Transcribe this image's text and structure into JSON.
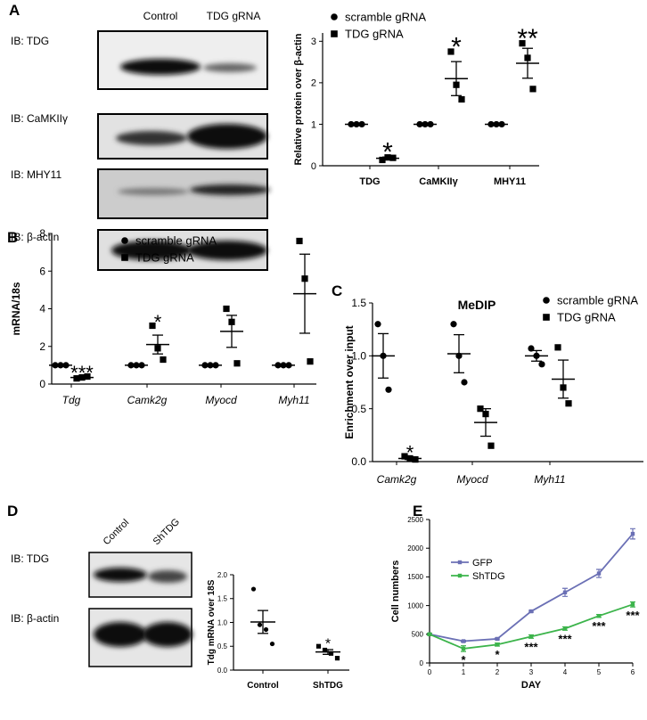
{
  "chart_data": [
    {
      "type": "dot",
      "panel": "A",
      "ylabel": "Relative protein over β-actin",
      "categories": [
        "TDG",
        "CaMKIIγ",
        "MHY11"
      ],
      "category_style": "bold",
      "legend": "upper-left",
      "series": [
        {
          "name": "scramble gRNA",
          "marker": "circle",
          "color": "#000000",
          "values": [
            1,
            1,
            1
          ],
          "errors": [
            0,
            0,
            0
          ],
          "points": [
            [
              1,
              1,
              1
            ],
            [
              1,
              1,
              1
            ],
            [
              1,
              1,
              1
            ]
          ]
        },
        {
          "name": "TDG gRNA",
          "marker": "square",
          "color": "#000000",
          "values": [
            0.18,
            2.1,
            2.47
          ],
          "errors": [
            0.03,
            0.41,
            0.36
          ],
          "points": [
            [
              0.14,
              0.2,
              0.19
            ],
            [
              2.75,
              1.95,
              1.6
            ],
            [
              2.95,
              2.6,
              1.85
            ]
          ]
        }
      ],
      "annotations": [
        "*",
        "*",
        "**"
      ],
      "ylim": [
        0,
        3.2
      ],
      "yticks": [
        0,
        1,
        2,
        3
      ]
    },
    {
      "type": "dot",
      "panel": "B",
      "ylabel": "mRNA/18s",
      "categories": [
        "Tdg",
        "Camk2g",
        "Myocd",
        "Myh11"
      ],
      "category_style": "italic",
      "legend": "upper-center",
      "series": [
        {
          "name": "scramble gRNA",
          "marker": "circle",
          "color": "#000000",
          "values": [
            1,
            1,
            1,
            1
          ],
          "errors": [
            0,
            0,
            0,
            0
          ],
          "points": [
            [
              1,
              1,
              1
            ],
            [
              1,
              1,
              1
            ],
            [
              1,
              1,
              1
            ],
            [
              1,
              1,
              1
            ]
          ]
        },
        {
          "name": "TDG gRNA",
          "marker": "square",
          "color": "#000000",
          "values": [
            0.35,
            2.1,
            2.8,
            4.8
          ],
          "errors": [
            0.04,
            0.5,
            0.85,
            2.1
          ],
          "points": [
            [
              0.3,
              0.35,
              0.4
            ],
            [
              3.1,
              1.9,
              1.3
            ],
            [
              4.0,
              3.3,
              1.1
            ],
            [
              7.6,
              5.6,
              1.2
            ]
          ]
        }
      ],
      "annotations": [
        "***",
        "*",
        null,
        null
      ],
      "ylim": [
        0,
        8
      ],
      "yticks": [
        0,
        2,
        4,
        6,
        8
      ]
    },
    {
      "type": "dot",
      "panel": "C",
      "title": "MeDIP",
      "ylabel": "Enrichment over input",
      "categories": [
        "Camk2g",
        "Myocd",
        "Myh11"
      ],
      "category_style": "italic",
      "legend": "upper-right",
      "series": [
        {
          "name": "scramble gRNA",
          "marker": "circle",
          "color": "#000000",
          "values": [
            1.0,
            1.02,
            1.0
          ],
          "errors": [
            0.21,
            0.18,
            0.05
          ],
          "points": [
            [
              1.3,
              1.0,
              0.68
            ],
            [
              1.3,
              1.0,
              0.75
            ],
            [
              1.07,
              1.0,
              0.92
            ]
          ]
        },
        {
          "name": "TDG gRNA",
          "marker": "square",
          "color": "#000000",
          "values": [
            0.03,
            0.37,
            0.78
          ],
          "errors": [
            0.01,
            0.13,
            0.18
          ],
          "points": [
            [
              0.05,
              0.03,
              0.02
            ],
            [
              0.5,
              0.45,
              0.15
            ],
            [
              1.08,
              0.7,
              0.55
            ]
          ]
        }
      ],
      "annotations": [
        "*",
        null,
        null
      ],
      "ylim": [
        0,
        1.5
      ],
      "yticks": [
        {
          "value": 0,
          "label": "0.0"
        },
        0.5,
        {
          "value": 1,
          "label": "1.0"
        },
        1.5
      ]
    },
    {
      "type": "dot",
      "panel": "D",
      "ylabel": "Tdg mRNA over 18S",
      "categories": [
        "Control",
        "ShTDG"
      ],
      "category_style": "bold",
      "markers": [
        "circle",
        "square"
      ],
      "color": "#000000",
      "values": [
        1.01,
        0.38
      ],
      "errors": [
        0.24,
        0.05
      ],
      "points": [
        [
          1.7,
          0.95,
          0.85,
          0.55
        ],
        [
          0.5,
          0.42,
          0.35,
          0.25
        ]
      ],
      "annotations": [
        null,
        "*"
      ],
      "ylim": [
        0,
        2
      ],
      "yticks": [
        {
          "value": 0,
          "label": "0.0"
        },
        0.5,
        {
          "value": 1,
          "label": "1.0"
        },
        1.5,
        {
          "value": 2,
          "label": "2.0"
        }
      ]
    },
    {
      "type": "line",
      "panel": "E",
      "xlabel": "DAY",
      "ylabel": "Cell numbers",
      "x": [
        0,
        1,
        2,
        3,
        4,
        5,
        6
      ],
      "legend": "upper-left",
      "series": [
        {
          "name": "GFP",
          "color": "#6b70b5",
          "values": [
            500,
            380,
            420,
            900,
            1230,
            1560,
            2250
          ],
          "errors": [
            15,
            15,
            15,
            15,
            70,
            70,
            90
          ]
        },
        {
          "name": "ShTDG",
          "color": "#3cb44b",
          "values": [
            500,
            250,
            320,
            460,
            600,
            820,
            1020
          ],
          "errors": [
            15,
            50,
            25,
            30,
            30,
            25,
            45
          ]
        }
      ],
      "annotations": [
        null,
        "*",
        "*",
        "***",
        "***",
        "***",
        "***"
      ],
      "xlim": [
        0,
        6
      ],
      "xticks": [
        0,
        1,
        2,
        3,
        4,
        5,
        6
      ],
      "ylim": [
        0,
        2500
      ],
      "yticks": [
        0,
        500,
        1000,
        1500,
        2000,
        2500
      ]
    }
  ],
  "blots": [
    {
      "lanes": [
        "Control",
        "TDG gRNA"
      ],
      "rows": [
        "IB: TDG",
        "IB: CaMKIIγ",
        "IB: MHY11",
        "IB: β-actin"
      ]
    },
    {
      "lanes": [
        "Control",
        "ShTDG"
      ],
      "rows": [
        "IB: TDG",
        "IB: β-actin"
      ]
    }
  ]
}
